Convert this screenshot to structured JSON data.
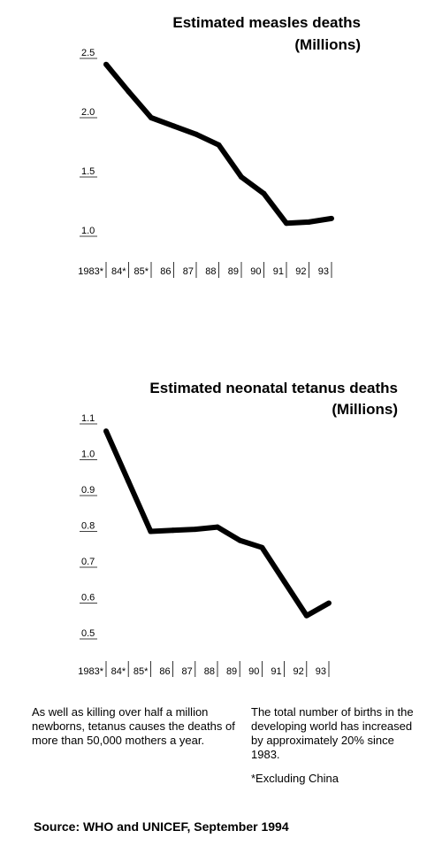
{
  "chart_data": [
    {
      "type": "line",
      "title": "Estimated measles deaths",
      "subtitle": "(Millions)",
      "x": [
        "1983*",
        "84*",
        "85*",
        "86",
        "87",
        "88",
        "89",
        "90",
        "91",
        "92",
        "93"
      ],
      "values": [
        2.45,
        2.22,
        2.0,
        1.93,
        1.86,
        1.77,
        1.5,
        1.36,
        1.11,
        1.12,
        1.15
      ],
      "yticks": [
        "2.5",
        "2.0",
        "1.5",
        "1.0"
      ],
      "ylim": [
        1.0,
        2.5
      ],
      "grid": false,
      "color": "#000000"
    },
    {
      "type": "line",
      "title": "Estimated neonatal tetanus deaths",
      "subtitle": "(Millions)",
      "x": [
        "1983*",
        "84*",
        "85*",
        "86",
        "87",
        "88",
        "89",
        "90",
        "91",
        "92",
        "93"
      ],
      "values": [
        1.08,
        0.94,
        0.8,
        0.803,
        0.806,
        0.812,
        0.775,
        0.755,
        0.66,
        0.565,
        0.6
      ],
      "yticks": [
        "1.1",
        "1.0",
        "0.9",
        "0.8",
        "0.7",
        "0.6",
        "0.5"
      ],
      "ylim": [
        0.5,
        1.1
      ],
      "grid": false,
      "color": "#000000"
    }
  ],
  "notes": {
    "left": "As well as killing over half a million newborns, tetanus causes the deaths of more than 50,000 mothers a year.",
    "right": "The total number of births in the developing world has increased by approximately 20% since 1983.",
    "footnote": "*Excluding China"
  },
  "source": "Source: WHO and UNICEF, September 1994"
}
